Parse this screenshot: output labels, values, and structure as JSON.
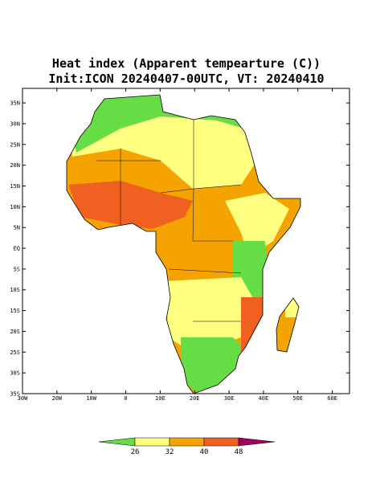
{
  "map": {
    "title": "Heat index (Apparent tempearture (C))",
    "subtitle": "Init:ICON 20240407-00UTC, VT: 20240410",
    "xlim": [
      -30,
      65
    ],
    "ylim": [
      -35,
      38.5
    ],
    "lat_ticks": [
      {
        "value": 35,
        "label": "35N"
      },
      {
        "value": 30,
        "label": "30N"
      },
      {
        "value": 25,
        "label": "25N"
      },
      {
        "value": 20,
        "label": "20N"
      },
      {
        "value": 15,
        "label": "15N"
      },
      {
        "value": 10,
        "label": "10N"
      },
      {
        "value": 5,
        "label": "5N"
      },
      {
        "value": 0,
        "label": "EQ"
      },
      {
        "value": -5,
        "label": "5S"
      },
      {
        "value": -10,
        "label": "10S"
      },
      {
        "value": -15,
        "label": "15S"
      },
      {
        "value": -20,
        "label": "20S"
      },
      {
        "value": -25,
        "label": "25S"
      },
      {
        "value": -30,
        "label": "30S"
      },
      {
        "value": -35,
        "label": "35S"
      }
    ],
    "lon_ticks": [
      {
        "value": -30,
        "label": "30W"
      },
      {
        "value": -20,
        "label": "20W"
      },
      {
        "value": -10,
        "label": "10W"
      },
      0,
      {
        "value": 10,
        "label": "10E"
      },
      {
        "value": 20,
        "label": "20E"
      },
      {
        "value": 30,
        "label": "30E"
      },
      {
        "value": 40,
        "label": "40E"
      },
      {
        "value": 50,
        "label": "50E"
      },
      {
        "value": 60,
        "label": "60E"
      }
    ],
    "colorbar": {
      "levels": [
        26,
        32,
        40,
        48
      ],
      "colors": [
        "#66dd44",
        "#ffff80",
        "#f5a300",
        "#f06020",
        "#a00060"
      ]
    }
  }
}
